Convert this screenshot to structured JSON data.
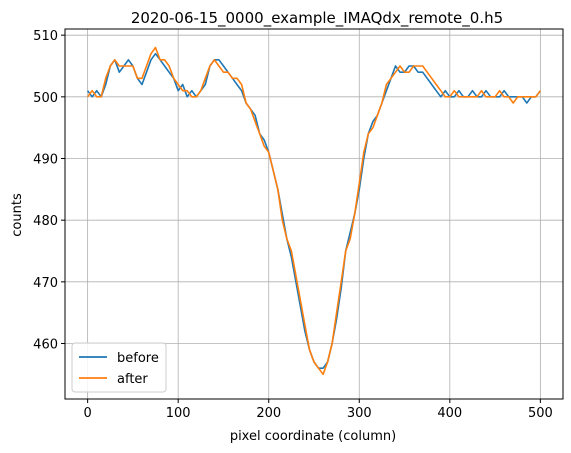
{
  "chart_data": {
    "type": "line",
    "title": "2020-06-15_0000_example_IMAQdx_remote_0.h5",
    "xlabel": "pixel coordinate (column)",
    "ylabel": "counts",
    "xlim": [
      -25,
      525
    ],
    "ylim": [
      451,
      511
    ],
    "xticks": [
      0,
      100,
      200,
      300,
      400,
      500
    ],
    "yticks": [
      460,
      470,
      480,
      490,
      500,
      510
    ],
    "grid": true,
    "legend_position": "lower-left",
    "series": [
      {
        "name": "before",
        "color": "#1f77b4",
        "points": [
          [
            0,
            501
          ],
          [
            5,
            500
          ],
          [
            10,
            501
          ],
          [
            15,
            500
          ],
          [
            20,
            502
          ],
          [
            25,
            505
          ],
          [
            30,
            506
          ],
          [
            35,
            504
          ],
          [
            40,
            505
          ],
          [
            45,
            506
          ],
          [
            50,
            505
          ],
          [
            55,
            503
          ],
          [
            60,
            502
          ],
          [
            65,
            504
          ],
          [
            70,
            506
          ],
          [
            75,
            507
          ],
          [
            80,
            506
          ],
          [
            85,
            505
          ],
          [
            90,
            504
          ],
          [
            95,
            503
          ],
          [
            100,
            501
          ],
          [
            105,
            502
          ],
          [
            110,
            500
          ],
          [
            115,
            501
          ],
          [
            120,
            500
          ],
          [
            125,
            501
          ],
          [
            130,
            502
          ],
          [
            135,
            505
          ],
          [
            140,
            506
          ],
          [
            145,
            506
          ],
          [
            150,
            505
          ],
          [
            155,
            504
          ],
          [
            160,
            503
          ],
          [
            165,
            502
          ],
          [
            170,
            501
          ],
          [
            175,
            499
          ],
          [
            180,
            498
          ],
          [
            185,
            497
          ],
          [
            190,
            494
          ],
          [
            195,
            493
          ],
          [
            200,
            491
          ],
          [
            205,
            488
          ],
          [
            210,
            485
          ],
          [
            215,
            481
          ],
          [
            220,
            477
          ],
          [
            225,
            474
          ],
          [
            230,
            470
          ],
          [
            235,
            466
          ],
          [
            240,
            462
          ],
          [
            245,
            459
          ],
          [
            250,
            457
          ],
          [
            255,
            456
          ],
          [
            260,
            456
          ],
          [
            265,
            457
          ],
          [
            270,
            460
          ],
          [
            275,
            464
          ],
          [
            280,
            469
          ],
          [
            285,
            475
          ],
          [
            290,
            478
          ],
          [
            295,
            481
          ],
          [
            300,
            485
          ],
          [
            305,
            490
          ],
          [
            310,
            494
          ],
          [
            315,
            496
          ],
          [
            320,
            497
          ],
          [
            325,
            499
          ],
          [
            330,
            501
          ],
          [
            335,
            503
          ],
          [
            340,
            505
          ],
          [
            345,
            504
          ],
          [
            350,
            504
          ],
          [
            355,
            505
          ],
          [
            360,
            505
          ],
          [
            365,
            504
          ],
          [
            370,
            504
          ],
          [
            375,
            503
          ],
          [
            380,
            502
          ],
          [
            385,
            501
          ],
          [
            390,
            500
          ],
          [
            395,
            501
          ],
          [
            400,
            500
          ],
          [
            405,
            500
          ],
          [
            410,
            501
          ],
          [
            415,
            500
          ],
          [
            420,
            500
          ],
          [
            425,
            501
          ],
          [
            430,
            500
          ],
          [
            435,
            500
          ],
          [
            440,
            501
          ],
          [
            445,
            500
          ],
          [
            450,
            500
          ],
          [
            455,
            500
          ],
          [
            460,
            501
          ],
          [
            465,
            500
          ],
          [
            470,
            500
          ],
          [
            475,
            500
          ],
          [
            480,
            500
          ],
          [
            485,
            499
          ],
          [
            490,
            500
          ],
          [
            495,
            500
          ],
          [
            500,
            501
          ]
        ]
      },
      {
        "name": "after",
        "color": "#ff7f0e",
        "points": [
          [
            0,
            500
          ],
          [
            5,
            501
          ],
          [
            10,
            500
          ],
          [
            15,
            500
          ],
          [
            20,
            503
          ],
          [
            25,
            505
          ],
          [
            30,
            506
          ],
          [
            35,
            505
          ],
          [
            40,
            505
          ],
          [
            45,
            505
          ],
          [
            50,
            505
          ],
          [
            55,
            503
          ],
          [
            60,
            503
          ],
          [
            65,
            505
          ],
          [
            70,
            507
          ],
          [
            75,
            508
          ],
          [
            80,
            506
          ],
          [
            85,
            506
          ],
          [
            90,
            505
          ],
          [
            95,
            503
          ],
          [
            100,
            502
          ],
          [
            105,
            501
          ],
          [
            110,
            501
          ],
          [
            115,
            500
          ],
          [
            120,
            500
          ],
          [
            125,
            501
          ],
          [
            130,
            503
          ],
          [
            135,
            505
          ],
          [
            140,
            506
          ],
          [
            145,
            505
          ],
          [
            150,
            504
          ],
          [
            155,
            504
          ],
          [
            160,
            503
          ],
          [
            165,
            503
          ],
          [
            170,
            502
          ],
          [
            175,
            499
          ],
          [
            180,
            498
          ],
          [
            185,
            496
          ],
          [
            190,
            494
          ],
          [
            195,
            492
          ],
          [
            200,
            491
          ],
          [
            205,
            488
          ],
          [
            210,
            485
          ],
          [
            215,
            480
          ],
          [
            220,
            477
          ],
          [
            225,
            475
          ],
          [
            230,
            471
          ],
          [
            235,
            467
          ],
          [
            240,
            463
          ],
          [
            245,
            459
          ],
          [
            250,
            457
          ],
          [
            255,
            456
          ],
          [
            260,
            455
          ],
          [
            265,
            457
          ],
          [
            270,
            460
          ],
          [
            275,
            465
          ],
          [
            280,
            470
          ],
          [
            285,
            475
          ],
          [
            290,
            477
          ],
          [
            295,
            481
          ],
          [
            300,
            486
          ],
          [
            305,
            491
          ],
          [
            310,
            494
          ],
          [
            315,
            495
          ],
          [
            320,
            497
          ],
          [
            325,
            499
          ],
          [
            330,
            502
          ],
          [
            335,
            503
          ],
          [
            340,
            504
          ],
          [
            345,
            505
          ],
          [
            350,
            504
          ],
          [
            355,
            504
          ],
          [
            360,
            505
          ],
          [
            365,
            505
          ],
          [
            370,
            505
          ],
          [
            375,
            504
          ],
          [
            380,
            503
          ],
          [
            385,
            502
          ],
          [
            390,
            501
          ],
          [
            395,
            500
          ],
          [
            400,
            500
          ],
          [
            405,
            501
          ],
          [
            410,
            500
          ],
          [
            415,
            500
          ],
          [
            420,
            500
          ],
          [
            425,
            500
          ],
          [
            430,
            500
          ],
          [
            435,
            501
          ],
          [
            440,
            500
          ],
          [
            445,
            500
          ],
          [
            450,
            500
          ],
          [
            455,
            501
          ],
          [
            460,
            500
          ],
          [
            465,
            500
          ],
          [
            470,
            499
          ],
          [
            475,
            500
          ],
          [
            480,
            500
          ],
          [
            485,
            500
          ],
          [
            490,
            500
          ],
          [
            495,
            500
          ],
          [
            500,
            501
          ]
        ]
      }
    ]
  }
}
